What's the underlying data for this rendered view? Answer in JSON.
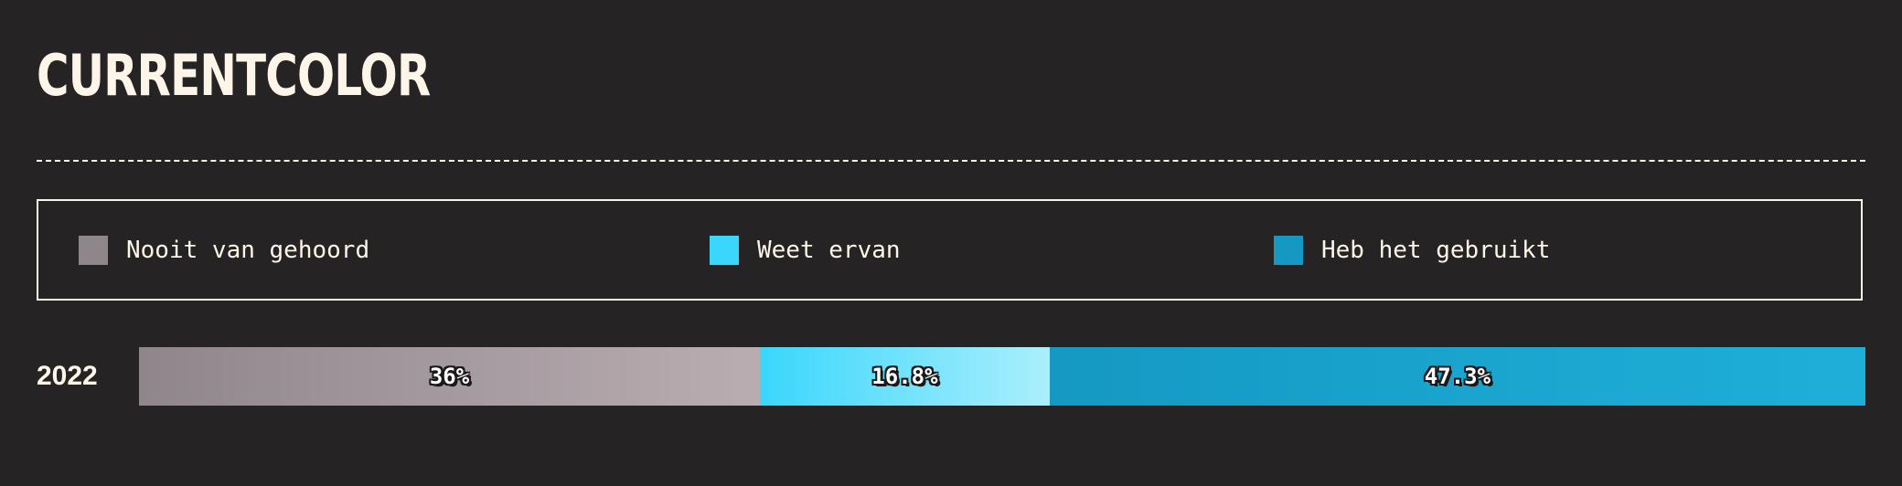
{
  "title": "CURRENTCOLOR",
  "legend": [
    {
      "label": "Nooit van gehoord",
      "color": "#8f868c"
    },
    {
      "label": "Weet ervan",
      "color": "#3ad6fc"
    },
    {
      "label": "Heb het gebruikt",
      "color": "#1599c3"
    }
  ],
  "chart_data": {
    "type": "bar",
    "orientation": "horizontal",
    "stacked": true,
    "categories": [
      "2022"
    ],
    "series": [
      {
        "name": "Nooit van gehoord",
        "values": [
          36
        ],
        "label": "36%",
        "color_start": "#8f868c",
        "color_end": "#b9adb1"
      },
      {
        "name": "Weet ervan",
        "values": [
          16.8
        ],
        "label": "16.8%",
        "color_start": "#3ad6fc",
        "color_end": "#abeffc"
      },
      {
        "name": "Heb het gebruikt",
        "values": [
          47.3
        ],
        "label": "47.3%",
        "color_start": "#1599c3",
        "color_end": "#1eafd8"
      }
    ],
    "legend_position": "top",
    "unit": "%"
  }
}
